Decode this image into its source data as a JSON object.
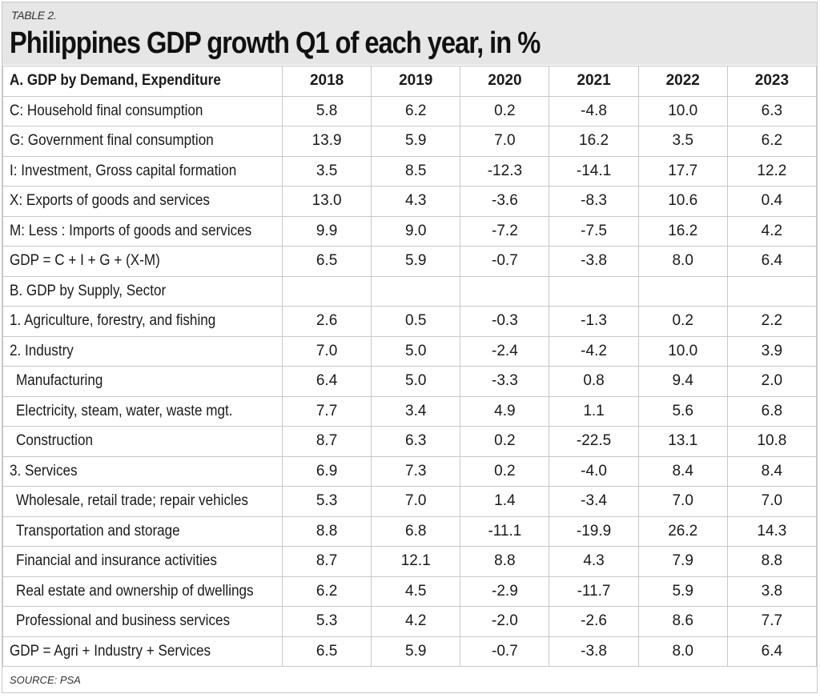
{
  "table_label": "TABLE 2.",
  "title": "Philippines GDP growth Q1 of each year, in %",
  "header": {
    "label": "A. GDP by Demand, Expenditure",
    "years": [
      "2018",
      "2019",
      "2020",
      "2021",
      "2022",
      "2023"
    ]
  },
  "rows": [
    {
      "label": "C: Household final consumption",
      "values": [
        "5.8",
        "6.2",
        "0.2",
        "-4.8",
        "10.0",
        "6.3"
      ]
    },
    {
      "label": "G: Government final consumption",
      "values": [
        "13.9",
        "5.9",
        "7.0",
        "16.2",
        "3.5",
        "6.2"
      ]
    },
    {
      "label": "I: Investment, Gross capital formation",
      "values": [
        "3.5",
        "8.5",
        "-12.3",
        "-14.1",
        "17.7",
        "12.2"
      ]
    },
    {
      "label": "X: Exports of goods and services",
      "values": [
        "13.0",
        "4.3",
        "-3.6",
        "-8.3",
        "10.6",
        "0.4"
      ]
    },
    {
      "label": "M: Less : Imports of goods and services",
      "values": [
        "9.9",
        "9.0",
        "-7.2",
        "-7.5",
        "16.2",
        "4.2"
      ]
    },
    {
      "label": "GDP = C + I + G + (X-M)",
      "values": [
        "6.5",
        "5.9",
        "-0.7",
        "-3.8",
        "8.0",
        "6.4"
      ]
    },
    {
      "label": "B. GDP by Supply, Sector",
      "values": [
        "",
        "",
        "",
        "",
        "",
        ""
      ]
    },
    {
      "label": "1. Agriculture, forestry, and fishing",
      "values": [
        "2.6",
        "0.5",
        "-0.3",
        "-1.3",
        "0.2",
        "2.2"
      ]
    },
    {
      "label": "2. Industry",
      "values": [
        "7.0",
        "5.0",
        "-2.4",
        "-4.2",
        "10.0",
        "3.9"
      ]
    },
    {
      "label": "Manufacturing",
      "indent": true,
      "values": [
        "6.4",
        "5.0",
        "-3.3",
        "0.8",
        "9.4",
        "2.0"
      ]
    },
    {
      "label": "Electricity, steam, water, waste mgt.",
      "indent": true,
      "values": [
        "7.7",
        "3.4",
        "4.9",
        "1.1",
        "5.6",
        "6.8"
      ]
    },
    {
      "label": "Construction",
      "indent": true,
      "values": [
        "8.7",
        "6.3",
        "0.2",
        "-22.5",
        "13.1",
        "10.8"
      ]
    },
    {
      "label": "3. Services",
      "values": [
        "6.9",
        "7.3",
        "0.2",
        "-4.0",
        "8.4",
        "8.4"
      ]
    },
    {
      "label": "Wholesale, retail trade; repair vehicles",
      "indent": true,
      "values": [
        "5.3",
        "7.0",
        "1.4",
        "-3.4",
        "7.0",
        "7.0"
      ]
    },
    {
      "label": "Transportation and storage",
      "indent": true,
      "values": [
        "8.8",
        "6.8",
        "-11.1",
        "-19.9",
        "26.2",
        "14.3"
      ]
    },
    {
      "label": "Financial and insurance activities",
      "indent": true,
      "values": [
        "8.7",
        "12.1",
        "8.8",
        "4.3",
        "7.9",
        "8.8"
      ]
    },
    {
      "label": "Real estate and ownership of dwellings",
      "indent": true,
      "values": [
        "6.2",
        "4.5",
        "-2.9",
        "-11.7",
        "5.9",
        "3.8"
      ]
    },
    {
      "label": "Professional and business services",
      "indent": true,
      "values": [
        "5.3",
        "4.2",
        "-2.0",
        "-2.6",
        "8.6",
        "7.7"
      ]
    },
    {
      "label": "GDP = Agri + Industry + Services",
      "values": [
        "6.5",
        "5.9",
        "-0.7",
        "-3.8",
        "8.0",
        "6.4"
      ]
    }
  ],
  "source": "SOURCE: PSA"
}
